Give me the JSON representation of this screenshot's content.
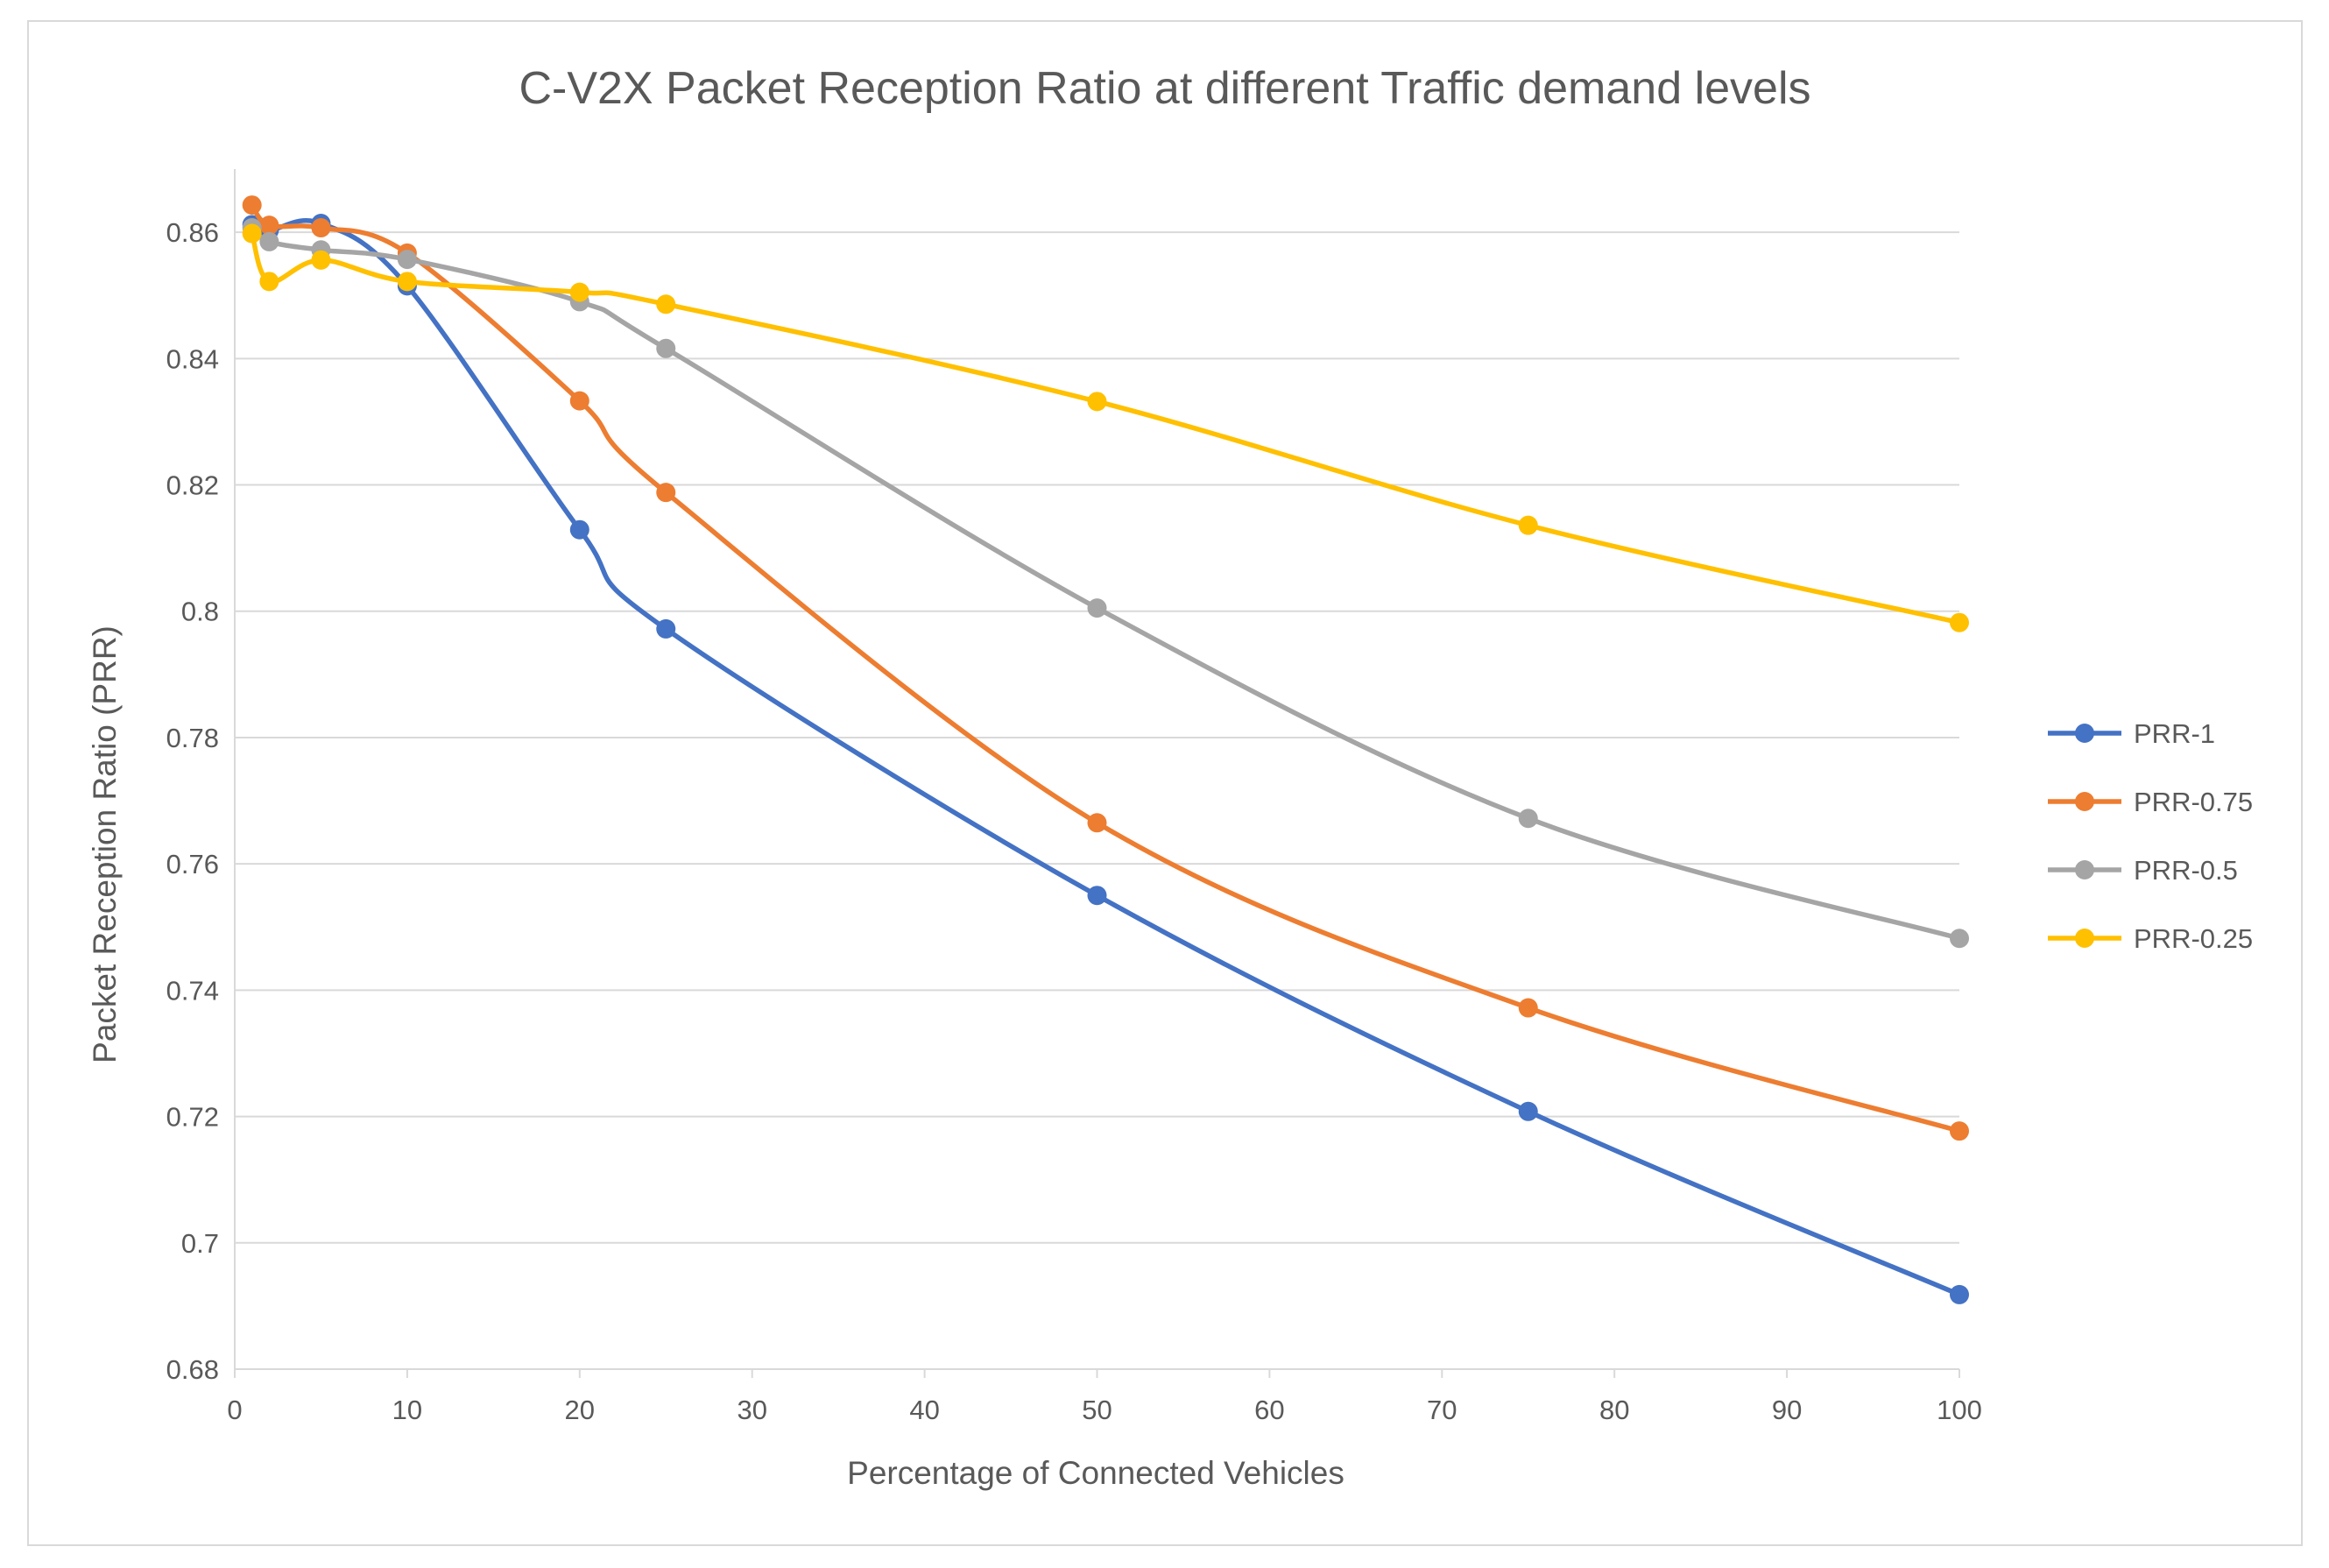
{
  "chart_data": {
    "type": "line",
    "title": "C-V2X Packet Reception Ratio at different Traffic demand levels",
    "xlabel": "Percentage of Connected Vehicles",
    "ylabel": "Packet Reception Ratio (PRR)",
    "xlim": [
      0,
      100
    ],
    "ylim": [
      0.68,
      0.87
    ],
    "xticks": [
      0,
      10,
      20,
      30,
      40,
      50,
      60,
      70,
      80,
      90,
      100
    ],
    "xtick_labels": [
      "0",
      "10",
      "20",
      "30",
      "40",
      "50",
      "60",
      "70",
      "80",
      "90",
      "100"
    ],
    "yticks": [
      0.68,
      0.7,
      0.72,
      0.74,
      0.76,
      0.78,
      0.8,
      0.82,
      0.84,
      0.86
    ],
    "ytick_labels": [
      "0.68",
      "0.7",
      "0.72",
      "0.74",
      "0.76",
      "0.78",
      "0.8",
      "0.82",
      "0.84",
      "0.86"
    ],
    "grid": "horizontal",
    "legend_position": "right",
    "x": [
      1,
      2,
      5,
      10,
      20,
      25,
      50,
      75,
      100
    ],
    "series": [
      {
        "name": "PRR-1",
        "color": "#4472C4",
        "values": [
          0.8612,
          0.8603,
          0.8614,
          0.8515,
          0.8129,
          0.7972,
          0.755,
          0.7208,
          0.6918
        ]
      },
      {
        "name": "PRR-0.75",
        "color": "#ED7D31",
        "values": [
          0.8643,
          0.8611,
          0.8607,
          0.8567,
          0.8333,
          0.8188,
          0.7665,
          0.7372,
          0.7177
        ]
      },
      {
        "name": "PRR-0.5",
        "color": "#A5A5A5",
        "values": [
          0.8607,
          0.8585,
          0.8572,
          0.8557,
          0.849,
          0.8416,
          0.8005,
          0.7672,
          0.7482
        ]
      },
      {
        "name": "PRR-0.25",
        "color": "#FFC000",
        "values": [
          0.8598,
          0.8522,
          0.8556,
          0.8522,
          0.8505,
          0.8486,
          0.8332,
          0.8136,
          0.7982
        ]
      }
    ]
  }
}
